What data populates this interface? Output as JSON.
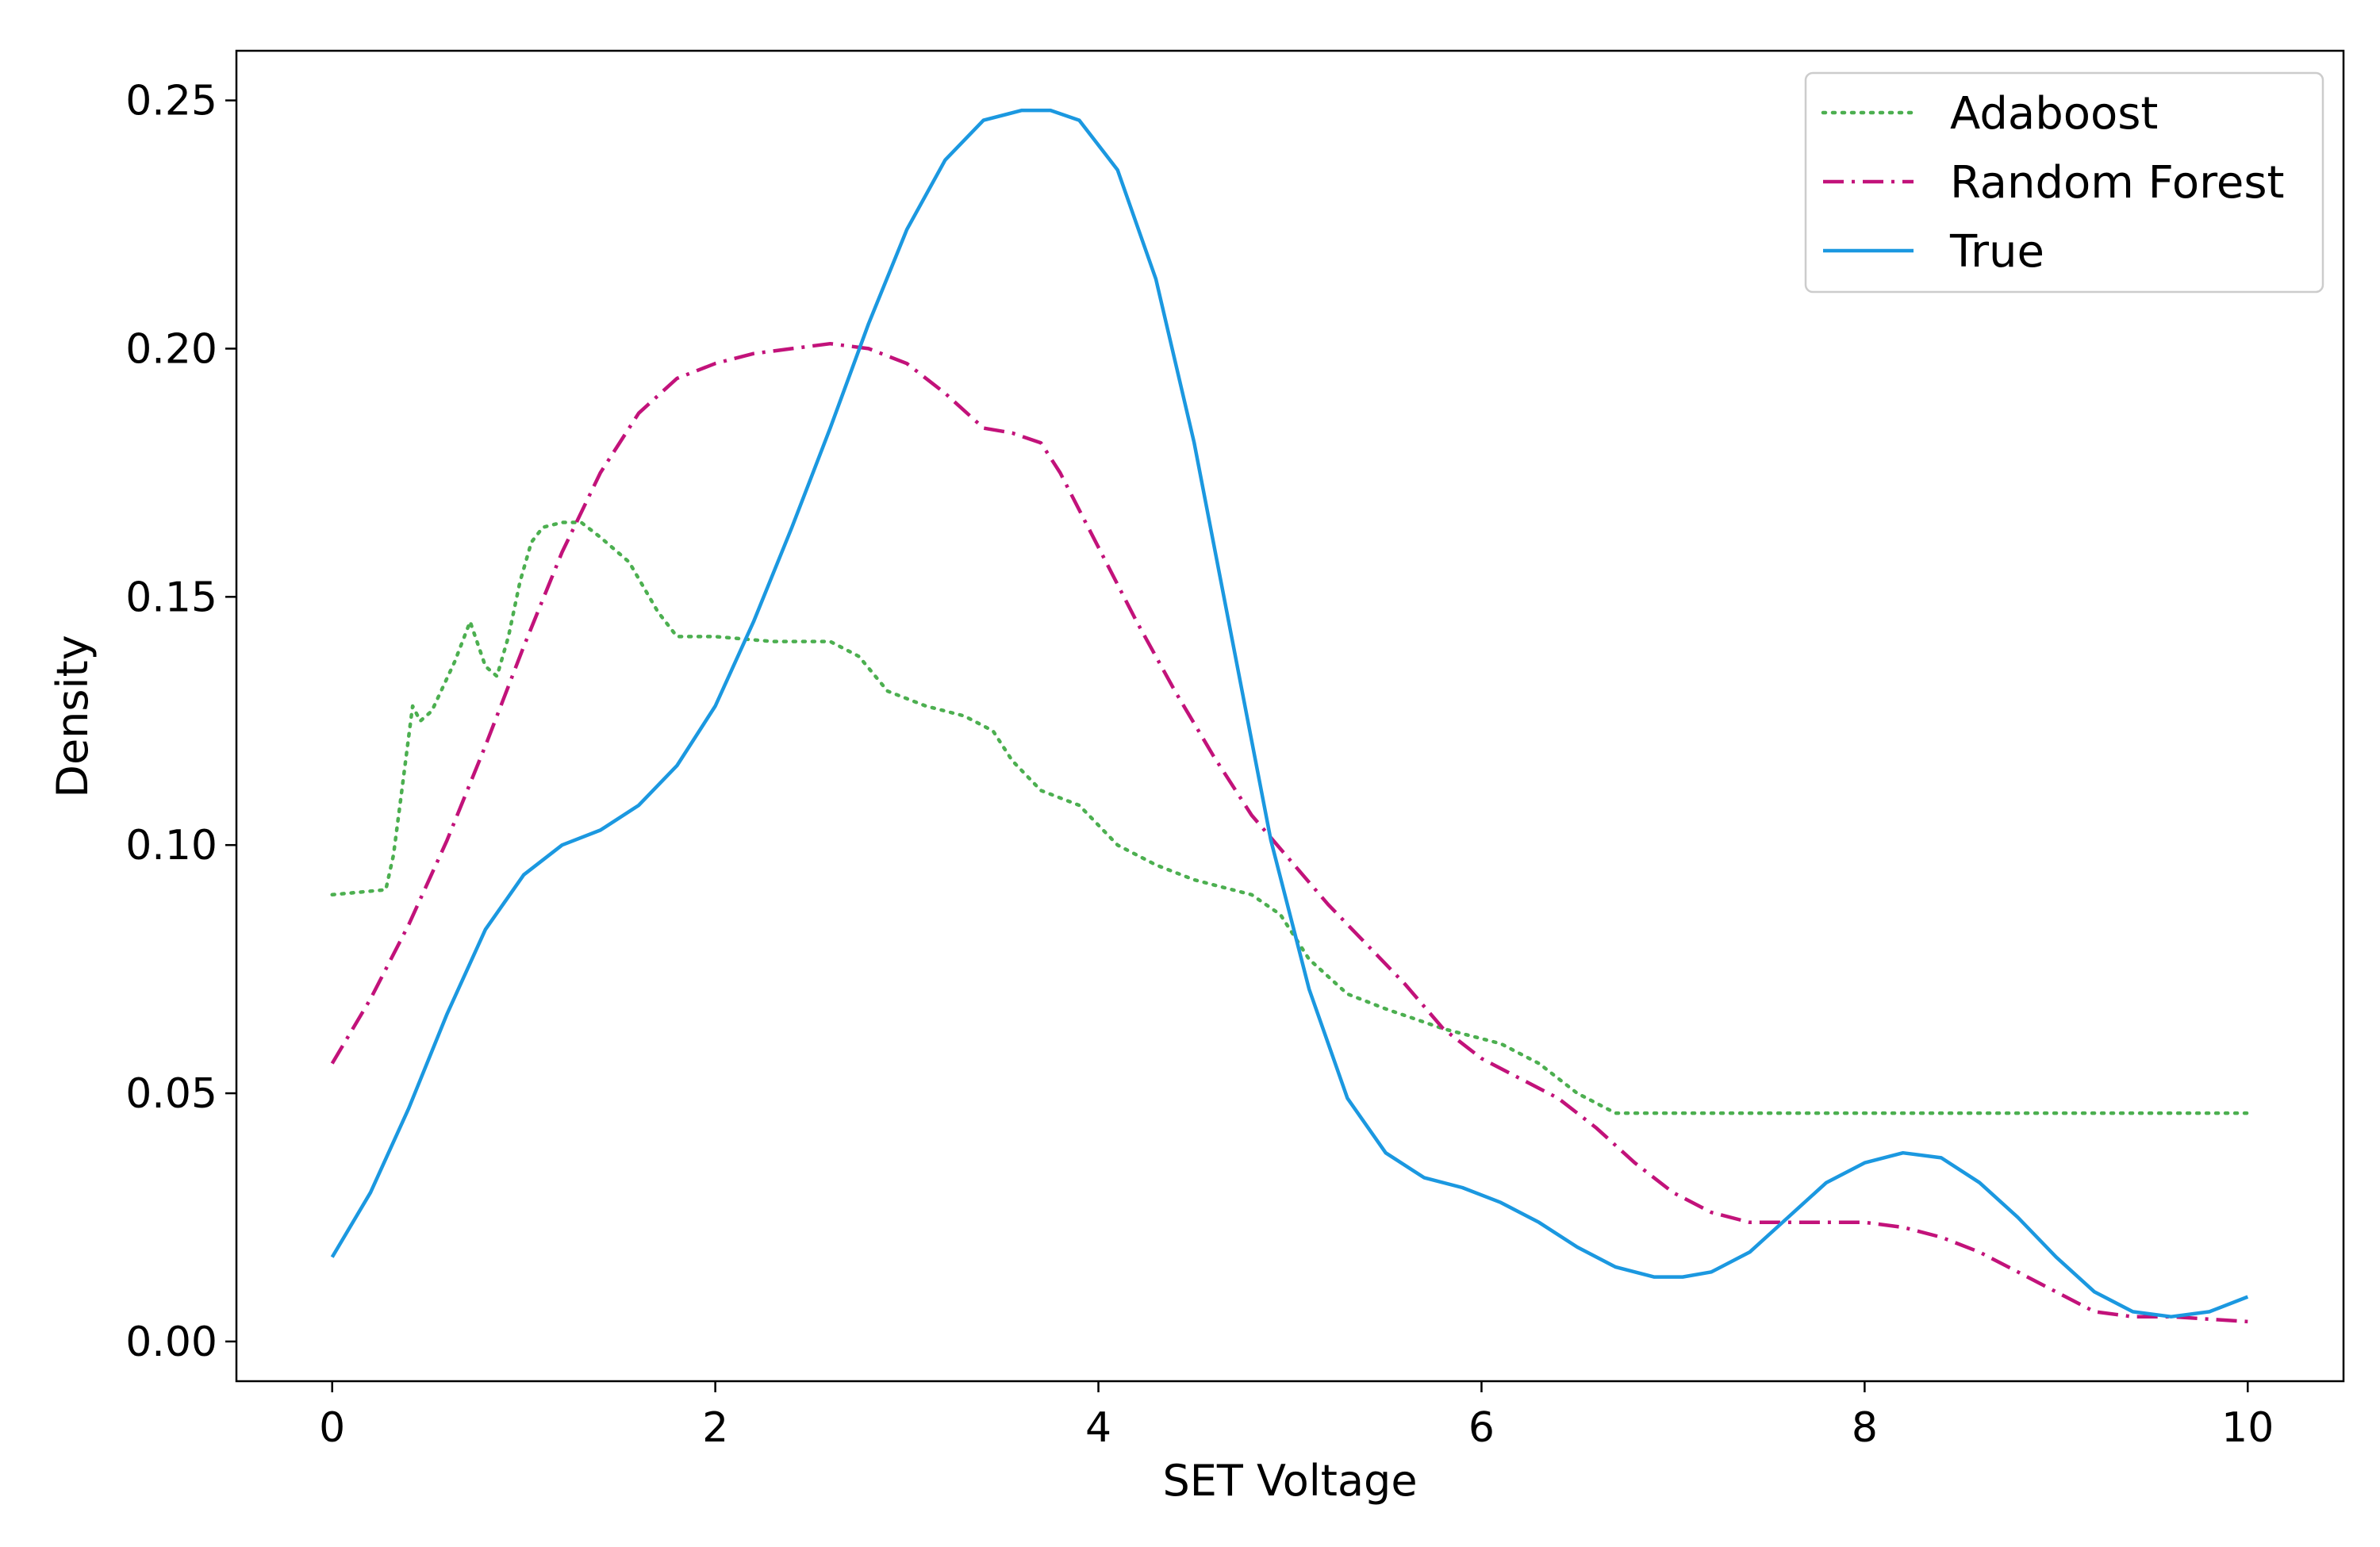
{
  "chart_data": {
    "type": "line",
    "title": "",
    "xlabel": "SET Voltage",
    "ylabel": "Density",
    "xlim": [
      -0.5,
      10.5
    ],
    "ylim": [
      -0.008,
      0.26
    ],
    "x_ticks": [
      0,
      2,
      4,
      6,
      8,
      10
    ],
    "x_tick_labels": [
      "0",
      "2",
      "4",
      "6",
      "8",
      "10"
    ],
    "y_ticks": [
      0,
      0.05,
      0.1,
      0.15,
      0.2,
      0.25
    ],
    "y_tick_labels": [
      "0.00",
      "0.05",
      "0.10",
      "0.15",
      "0.20",
      "0.25"
    ],
    "grid": false,
    "legend_position": "top-right",
    "series": [
      {
        "name": "Adaboost",
        "color": "#4caf50",
        "style": "dotted",
        "x": [
          0,
          0.28,
          0.32,
          0.36,
          0.4,
          0.42,
          0.46,
          0.52,
          0.58,
          0.64,
          0.72,
          0.8,
          0.86,
          0.92,
          0.98,
          1.04,
          1.1,
          1.2,
          1.3,
          1.4,
          1.55,
          1.7,
          1.8,
          2.0,
          2.3,
          2.6,
          2.75,
          2.9,
          3.1,
          3.3,
          3.45,
          3.55,
          3.7,
          3.9,
          4.1,
          4.3,
          4.5,
          4.6,
          4.8,
          4.95,
          5.1,
          5.3,
          5.5,
          5.8,
          6.1,
          6.3,
          6.5,
          6.7,
          6.9,
          7.2,
          8.0,
          9.0,
          10.0
        ],
        "y": [
          0.09,
          0.091,
          0.098,
          0.11,
          0.122,
          0.128,
          0.125,
          0.127,
          0.132,
          0.137,
          0.145,
          0.136,
          0.134,
          0.142,
          0.153,
          0.161,
          0.164,
          0.165,
          0.165,
          0.162,
          0.157,
          0.147,
          0.142,
          0.142,
          0.141,
          0.141,
          0.138,
          0.131,
          0.128,
          0.126,
          0.123,
          0.117,
          0.111,
          0.108,
          0.1,
          0.096,
          0.093,
          0.092,
          0.09,
          0.086,
          0.077,
          0.07,
          0.067,
          0.063,
          0.06,
          0.056,
          0.05,
          0.046,
          0.046,
          0.046,
          0.046,
          0.046,
          0.046
        ]
      },
      {
        "name": "Random Forest",
        "color": "#c2127a",
        "style": "dashdot",
        "x": [
          0,
          0.2,
          0.4,
          0.6,
          0.8,
          1.0,
          1.2,
          1.4,
          1.6,
          1.8,
          2.0,
          2.2,
          2.4,
          2.6,
          2.8,
          3.0,
          3.2,
          3.4,
          3.55,
          3.7,
          3.8,
          4.0,
          4.2,
          4.4,
          4.6,
          4.8,
          5.0,
          5.2,
          5.4,
          5.6,
          5.8,
          6.0,
          6.2,
          6.4,
          6.6,
          6.8,
          7.0,
          7.2,
          7.4,
          7.6,
          7.8,
          8.0,
          8.2,
          8.4,
          8.6,
          8.8,
          9.0,
          9.2,
          9.4,
          9.6,
          10.0
        ],
        "y": [
          0.056,
          0.069,
          0.084,
          0.101,
          0.12,
          0.14,
          0.159,
          0.175,
          0.187,
          0.194,
          0.197,
          0.199,
          0.2,
          0.201,
          0.2,
          0.197,
          0.191,
          0.184,
          0.183,
          0.181,
          0.175,
          0.16,
          0.145,
          0.131,
          0.118,
          0.106,
          0.097,
          0.088,
          0.08,
          0.072,
          0.063,
          0.057,
          0.053,
          0.049,
          0.043,
          0.036,
          0.03,
          0.026,
          0.024,
          0.024,
          0.024,
          0.024,
          0.023,
          0.021,
          0.018,
          0.014,
          0.01,
          0.006,
          0.005,
          0.005,
          0.004
        ]
      },
      {
        "name": "True",
        "color": "#1b98e0",
        "style": "solid",
        "x": [
          0,
          0.2,
          0.4,
          0.6,
          0.8,
          1.0,
          1.2,
          1.4,
          1.6,
          1.8,
          2.0,
          2.2,
          2.4,
          2.6,
          2.8,
          3.0,
          3.2,
          3.4,
          3.6,
          3.75,
          3.9,
          4.1,
          4.3,
          4.5,
          4.7,
          4.9,
          5.1,
          5.3,
          5.5,
          5.7,
          5.9,
          6.1,
          6.3,
          6.5,
          6.7,
          6.9,
          7.05,
          7.2,
          7.4,
          7.6,
          7.8,
          8.0,
          8.2,
          8.4,
          8.6,
          8.8,
          9.0,
          9.2,
          9.4,
          9.6,
          9.8,
          10.0
        ],
        "y": [
          0.017,
          0.03,
          0.047,
          0.066,
          0.083,
          0.094,
          0.1,
          0.103,
          0.108,
          0.116,
          0.128,
          0.145,
          0.164,
          0.184,
          0.205,
          0.224,
          0.238,
          0.246,
          0.248,
          0.248,
          0.246,
          0.236,
          0.214,
          0.181,
          0.141,
          0.101,
          0.071,
          0.049,
          0.038,
          0.033,
          0.031,
          0.028,
          0.024,
          0.019,
          0.015,
          0.013,
          0.013,
          0.014,
          0.018,
          0.025,
          0.032,
          0.036,
          0.038,
          0.037,
          0.032,
          0.025,
          0.017,
          0.01,
          0.006,
          0.005,
          0.006,
          0.009
        ]
      }
    ]
  }
}
